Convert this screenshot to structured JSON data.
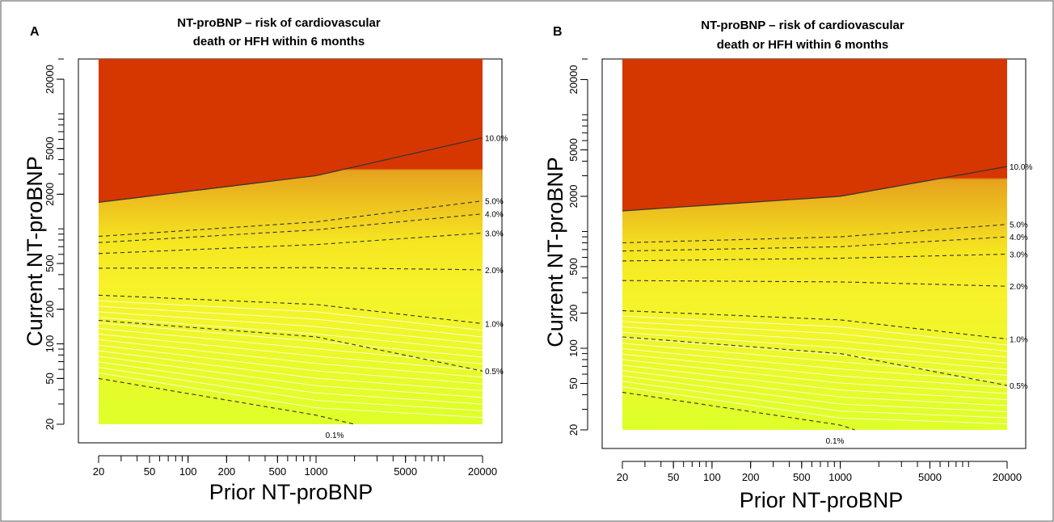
{
  "chart_data": [
    {
      "type": "heatmap",
      "panel_label": "A",
      "title": "NT-proBNP – risk of cardiovascular death or HFH within 6 months",
      "title_lines": [
        "NT-proBNP – risk of cardiovascular",
        "death or HFH within 6 months"
      ],
      "xlabel": "Prior NT-proBNP",
      "ylabel": "Current NT-proBNP",
      "x_scale": "log",
      "y_scale": "log",
      "xlim": [
        20,
        20000
      ],
      "ylim": [
        20,
        30000
      ],
      "x_ticks": [
        20,
        50,
        100,
        200,
        500,
        1000,
        5000,
        20000
      ],
      "x_tick_labels": [
        "20",
        "50",
        "100",
        "200",
        "500",
        "1000",
        "5000",
        "20000"
      ],
      "y_ticks": [
        20,
        50,
        100,
        200,
        500,
        2000,
        5000,
        20000
      ],
      "y_tick_labels": [
        "20",
        "50",
        "100",
        "200",
        "500",
        "2000",
        "5000",
        "20000"
      ],
      "contours": [
        {
          "label": "10.0%",
          "style": "solid",
          "y_at_x": [
            [
              20,
              1700
            ],
            [
              1000,
              2900
            ],
            [
              20000,
              6200
            ]
          ]
        },
        {
          "label": "5.0%",
          "style": "dashed",
          "y_at_x": [
            [
              20,
              860
            ],
            [
              1000,
              1150
            ],
            [
              20000,
              1750
            ]
          ]
        },
        {
          "label": "4.0%",
          "style": "dashed",
          "y_at_x": [
            [
              20,
              760
            ],
            [
              1000,
              980
            ],
            [
              20000,
              1350
            ]
          ]
        },
        {
          "label": "3.0%",
          "style": "dashed",
          "y_at_x": [
            [
              20,
              610
            ],
            [
              1000,
              730
            ],
            [
              20000,
              920
            ]
          ]
        },
        {
          "label": "2.0%",
          "style": "dashed",
          "y_at_x": [
            [
              20,
              455
            ],
            [
              1000,
              460
            ],
            [
              20000,
              440
            ]
          ]
        },
        {
          "label": "1.0%",
          "style": "dashed",
          "y_at_x": [
            [
              20,
              265
            ],
            [
              1000,
              220
            ],
            [
              20000,
              150
            ]
          ]
        },
        {
          "label": "0.5%",
          "style": "dashed",
          "y_at_x": [
            [
              20,
              160
            ],
            [
              1000,
              115
            ],
            [
              20000,
              58
            ]
          ]
        },
        {
          "label": "0.1%",
          "style": "dashed",
          "y_at_x": [
            [
              20,
              50
            ],
            [
              1000,
              24
            ],
            [
              2000,
              20
            ]
          ]
        }
      ],
      "colors": {
        "high": "#d63600",
        "mid": "#e6a21e",
        "low": "#f5e620",
        "lowest": "#deff2a"
      }
    },
    {
      "type": "heatmap",
      "panel_label": "B",
      "title": "NT-proBNP – risk of cardiovascular death or HFH within 6 months",
      "title_lines": [
        "NT-proBNP – risk of cardiovascular",
        "death or HFH within 6 months"
      ],
      "xlabel": "Prior NT-proBNP",
      "ylabel": "Current NT-proBNP",
      "x_scale": "log",
      "y_scale": "log",
      "xlim": [
        20,
        20000
      ],
      "ylim": [
        20,
        30000
      ],
      "x_ticks": [
        20,
        50,
        100,
        200,
        500,
        1000,
        5000,
        20000
      ],
      "x_tick_labels": [
        "20",
        "50",
        "100",
        "200",
        "500",
        "1000",
        "5000",
        "20000"
      ],
      "y_ticks": [
        20,
        50,
        100,
        200,
        500,
        2000,
        5000,
        20000
      ],
      "y_tick_labels": [
        "20",
        "50",
        "100",
        "200",
        "500",
        "2000",
        "5000",
        "20000"
      ],
      "contours": [
        {
          "label": "10.0%",
          "style": "solid",
          "y_at_x": [
            [
              20,
              1500
            ],
            [
              1000,
              2000
            ],
            [
              20000,
              3600
            ]
          ]
        },
        {
          "label": "5.0%",
          "style": "dashed",
          "y_at_x": [
            [
              20,
              800
            ],
            [
              1000,
              900
            ],
            [
              20000,
              1150
            ]
          ]
        },
        {
          "label": "4.0%",
          "style": "dashed",
          "y_at_x": [
            [
              20,
              680
            ],
            [
              1000,
              740
            ],
            [
              20000,
              900
            ]
          ]
        },
        {
          "label": "3.0%",
          "style": "dashed",
          "y_at_x": [
            [
              20,
              560
            ],
            [
              1000,
              590
            ],
            [
              20000,
              640
            ]
          ]
        },
        {
          "label": "2.0%",
          "style": "dashed",
          "y_at_x": [
            [
              20,
              380
            ],
            [
              1000,
              370
            ],
            [
              20000,
              340
            ]
          ]
        },
        {
          "label": "1.0%",
          "style": "dashed",
          "y_at_x": [
            [
              20,
              210
            ],
            [
              1000,
              175
            ],
            [
              20000,
              120
            ]
          ]
        },
        {
          "label": "0.5%",
          "style": "dashed",
          "y_at_x": [
            [
              20,
              125
            ],
            [
              1000,
              90
            ],
            [
              20000,
              48
            ]
          ]
        },
        {
          "label": "0.1%",
          "style": "dashed",
          "y_at_x": [
            [
              20,
              42
            ],
            [
              1000,
              22
            ],
            [
              1300,
              20
            ]
          ]
        }
      ],
      "colors": {
        "high": "#d63600",
        "mid": "#e6a21e",
        "low": "#f5e620",
        "lowest": "#deff2a"
      }
    }
  ]
}
